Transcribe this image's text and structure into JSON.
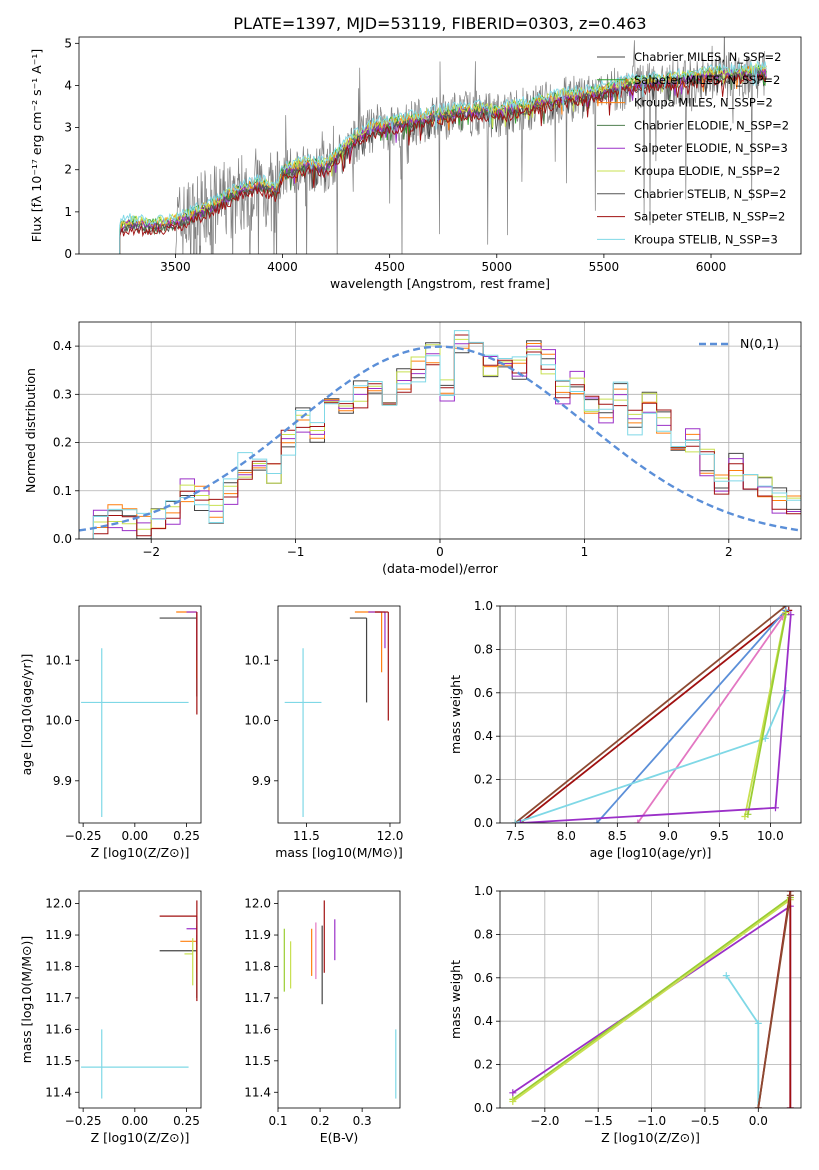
{
  "figure": {
    "title": "PLATE=1397, MJD=53119, FIBERID=0303, z=0.463"
  },
  "chart_data": [
    {
      "id": "spectrum",
      "type": "line",
      "xlabel": "wavelength [Angstrom, rest frame]",
      "ylabel": "Flux [fλ 10⁻¹⁷ erg cm⁻² s⁻¹ A⁻¹]",
      "xlim": [
        3050,
        6420
      ],
      "ylim": [
        0,
        5.15
      ],
      "xticks": [
        3500,
        4000,
        4500,
        5000,
        5500,
        6000
      ],
      "yticks": [
        0,
        1,
        2,
        3,
        4,
        5
      ],
      "data_color": "#808080",
      "model_points": {
        "x": [
          3240,
          3300,
          3400,
          3500,
          3600,
          3700,
          3800,
          3900,
          3970,
          4000,
          4100,
          4200,
          4300,
          4400,
          4500,
          4600,
          4700,
          4800,
          4900,
          5000,
          5100,
          5200,
          5300,
          5400,
          5500,
          5600,
          5700,
          5800,
          5900,
          6000,
          6100,
          6200
        ],
        "y": [
          0.6,
          0.65,
          0.6,
          0.7,
          0.9,
          1.15,
          1.45,
          1.6,
          1.4,
          1.9,
          2.05,
          2.0,
          2.5,
          2.9,
          3.0,
          3.1,
          3.2,
          3.3,
          3.35,
          3.3,
          3.4,
          3.5,
          3.65,
          3.7,
          3.8,
          3.95,
          4.0,
          4.05,
          4.1,
          4.2,
          4.2,
          4.25
        ]
      },
      "legend_position": "upper right",
      "series": [
        {
          "name": "Chabrier MILES, N_SSP=2",
          "color": "#444444"
        },
        {
          "name": "Salpeter MILES, N_SSP=2",
          "color": "#2ca02c"
        },
        {
          "name": "Kroupa MILES, N_SSP=2",
          "color": "#ff7f0e"
        },
        {
          "name": "Chabrier ELODIE, N_SSP=2",
          "color": "#4f7f4f"
        },
        {
          "name": "Salpeter ELODIE, N_SSP=3",
          "color": "#9b30c8"
        },
        {
          "name": "Kroupa ELODIE, N_SSP=2",
          "color": "#c8e050"
        },
        {
          "name": "Chabrier STELIB, N_SSP=2",
          "color": "#555555"
        },
        {
          "name": "Salpeter STELIB, N_SSP=2",
          "color": "#a01010"
        },
        {
          "name": "Kroupa STELIB, N_SSP=3",
          "color": "#7fd8e6"
        }
      ]
    },
    {
      "id": "residuals",
      "type": "line",
      "xlabel": "(data-model)/error",
      "ylabel": "Normed distribution",
      "xlim": [
        -2.5,
        2.5
      ],
      "ylim": [
        0,
        0.45
      ],
      "xticks": [
        -2,
        -1,
        0,
        1,
        2
      ],
      "yticks": [
        0.0,
        0.1,
        0.2,
        0.3,
        0.4
      ],
      "grid": true,
      "legend_position": "upper right",
      "gaussian": {
        "name": "N(0,1)",
        "color": "#5b8fd8",
        "mean": 0,
        "sigma": 1
      },
      "hist_bins": [
        -2.5,
        -2.4,
        -2.3,
        -2.2,
        -2.1,
        -2.0,
        -1.9,
        -1.8,
        -1.7,
        -1.6,
        -1.5,
        -1.4,
        -1.3,
        -1.2,
        -1.1,
        -1.0,
        -0.9,
        -0.8,
        -0.7,
        -0.6,
        -0.5,
        -0.4,
        -0.3,
        -0.2,
        -0.1,
        0.0,
        0.1,
        0.2,
        0.3,
        0.4,
        0.5,
        0.6,
        0.7,
        0.8,
        0.9,
        1.0,
        1.1,
        1.2,
        1.3,
        1.4,
        1.5,
        1.6,
        1.7,
        1.8,
        1.9,
        2.0,
        2.1,
        2.2,
        2.3,
        2.4
      ],
      "hist_values": [
        0.02,
        0.04,
        0.05,
        0.04,
        0.03,
        0.04,
        0.05,
        0.1,
        0.08,
        0.06,
        0.1,
        0.15,
        0.17,
        0.14,
        0.2,
        0.25,
        0.22,
        0.27,
        0.26,
        0.3,
        0.32,
        0.3,
        0.33,
        0.35,
        0.38,
        0.3,
        0.41,
        0.4,
        0.36,
        0.38,
        0.36,
        0.39,
        0.37,
        0.3,
        0.33,
        0.29,
        0.27,
        0.3,
        0.24,
        0.28,
        0.24,
        0.19,
        0.2,
        0.16,
        0.12,
        0.15,
        0.12,
        0.1,
        0.08,
        0.08
      ],
      "hist_colors": [
        "#444444",
        "#ff7f0e",
        "#9b30c8",
        "#c8e050",
        "#a01010",
        "#7fd8e6"
      ]
    },
    {
      "id": "age_vs_Z",
      "type": "scatter",
      "xlabel": "Z [log10(Z/Z⊙)]",
      "ylabel": "age  [log10(age/yr)]",
      "xlim": [
        -0.27,
        0.32
      ],
      "ylim": [
        9.83,
        10.19
      ],
      "xticks": [
        -0.25,
        0.0,
        0.25
      ],
      "yticks": [
        9.9,
        10.0,
        10.1
      ],
      "points": [
        {
          "x": -0.16,
          "y": 10.03,
          "xerr": [
            0.1,
            0.42
          ],
          "yerr": [
            0.19,
            0.09
          ],
          "color": "#7fd8e6"
        },
        {
          "x": 0.3,
          "y": 10.17,
          "xerr": [
            0.18,
            0.0
          ],
          "yerr": [
            0.13,
            0.0
          ],
          "color": "#444444"
        },
        {
          "x": 0.3,
          "y": 10.18,
          "xerr": [
            0.1,
            0.0
          ],
          "yerr": [
            0.11,
            0.0
          ],
          "color": "#ff7f0e"
        },
        {
          "x": 0.3,
          "y": 10.18,
          "xerr": [
            0.05,
            0.0
          ],
          "yerr": [
            0.08,
            0.0
          ],
          "color": "#9b30c8"
        },
        {
          "x": 0.3,
          "y": 10.18,
          "xerr": [
            0.0,
            0.0
          ],
          "yerr": [
            0.17,
            0.0
          ],
          "color": "#a01010"
        }
      ]
    },
    {
      "id": "age_vs_mass",
      "type": "scatter",
      "xlabel": "mass [log10(M/M⊙)]",
      "ylabel": "",
      "xlim": [
        11.33,
        12.06
      ],
      "ylim": [
        9.83,
        10.19
      ],
      "xticks": [
        11.5,
        12.0
      ],
      "yticks": [
        9.9,
        10.0,
        10.1
      ],
      "points": [
        {
          "x": 11.48,
          "y": 10.03,
          "xerr": [
            0.11,
            0.11
          ],
          "yerr": [
            0.19,
            0.09
          ],
          "color": "#7fd8e6"
        },
        {
          "x": 11.86,
          "y": 10.17,
          "xerr": [
            0.1,
            0.0
          ],
          "yerr": [
            0.14,
            0.0
          ],
          "color": "#444444"
        },
        {
          "x": 11.95,
          "y": 10.18,
          "xerr": [
            0.16,
            0.0
          ],
          "yerr": [
            0.1,
            0.0
          ],
          "color": "#ff7f0e"
        },
        {
          "x": 11.97,
          "y": 10.18,
          "xerr": [
            0.1,
            0.0
          ],
          "yerr": [
            0.06,
            0.0
          ],
          "color": "#9b30c8"
        },
        {
          "x": 11.99,
          "y": 10.18,
          "xerr": [
            0.08,
            0.0
          ],
          "yerr": [
            0.18,
            0.0
          ],
          "color": "#a01010"
        }
      ]
    },
    {
      "id": "mass_weight_vs_age",
      "type": "line",
      "xlabel": "age  [log10(age/yr)]",
      "ylabel": "mass weight",
      "xlim": [
        7.35,
        10.3
      ],
      "ylim": [
        0,
        1
      ],
      "xticks": [
        7.5,
        8.0,
        8.5,
        9.0,
        9.5,
        10.0
      ],
      "yticks": [
        0.0,
        0.2,
        0.4,
        0.6,
        0.8,
        1.0
      ],
      "grid": true,
      "series": [
        {
          "x": [
            7.5,
            10.15
          ],
          "y": [
            0.0,
            1.0
          ],
          "color": "#8c4a32"
        },
        {
          "x": [
            7.55,
            10.18
          ],
          "y": [
            0.0,
            0.98
          ],
          "color": "#a01010"
        },
        {
          "x": [
            8.3,
            10.15
          ],
          "y": [
            0.0,
            0.98
          ],
          "color": "#5b8fd8"
        },
        {
          "x": [
            8.7,
            10.12
          ],
          "y": [
            0.0,
            0.95
          ],
          "color": "#e377c2"
        },
        {
          "x": [
            7.5,
            9.95,
            10.15
          ],
          "y": [
            0.0,
            0.39,
            0.61
          ],
          "color": "#7fd8e6"
        },
        {
          "x": [
            9.75,
            10.15
          ],
          "y": [
            0.03,
            0.97
          ],
          "color": "#c8e050"
        },
        {
          "x": [
            9.78,
            10.15
          ],
          "y": [
            0.04,
            0.96
          ],
          "color": "#9acd32"
        },
        {
          "x": [
            7.55,
            10.05,
            10.2
          ],
          "y": [
            0.0,
            0.07,
            0.96
          ],
          "color": "#9b30c8"
        }
      ]
    },
    {
      "id": "mass_vs_Z",
      "type": "scatter",
      "xlabel": "Z [log10(Z/Z⊙)]",
      "ylabel": "mass [log10(M/M⊙)]",
      "xlim": [
        -0.27,
        0.32
      ],
      "ylim": [
        11.35,
        12.04
      ],
      "xticks": [
        -0.25,
        0.0,
        0.25
      ],
      "yticks": [
        11.4,
        11.5,
        11.6,
        11.7,
        11.8,
        11.9,
        12.0
      ],
      "points": [
        {
          "x": -0.16,
          "y": 11.48,
          "xerr": [
            0.1,
            0.42
          ],
          "yerr": [
            0.1,
            0.12
          ],
          "color": "#7fd8e6"
        },
        {
          "x": 0.3,
          "y": 11.85,
          "xerr": [
            0.18,
            0.0
          ],
          "yerr": [
            0.15,
            0.05
          ],
          "color": "#444444"
        },
        {
          "x": 0.3,
          "y": 11.88,
          "xerr": [
            0.08,
            0.0
          ],
          "yerr": [
            0.1,
            0.05
          ],
          "color": "#ff7f0e"
        },
        {
          "x": 0.3,
          "y": 11.92,
          "xerr": [
            0.05,
            0.0
          ],
          "yerr": [
            0.05,
            0.04
          ],
          "color": "#9b30c8"
        },
        {
          "x": 0.3,
          "y": 11.96,
          "xerr": [
            0.18,
            0.0
          ],
          "yerr": [
            0.27,
            0.05
          ],
          "color": "#a01010"
        },
        {
          "x": 0.28,
          "y": 11.84,
          "xerr": [
            0.04,
            0.0
          ],
          "yerr": [
            0.1,
            0.05
          ],
          "color": "#c8e050"
        }
      ]
    },
    {
      "id": "mass_vs_EBV",
      "type": "scatter",
      "xlabel": "E(B-V)",
      "ylabel": "",
      "xlim": [
        0.1,
        0.39
      ],
      "ylim": [
        11.35,
        12.04
      ],
      "xticks": [
        0.1,
        0.2,
        0.3
      ],
      "yticks": [
        11.4,
        11.5,
        11.6,
        11.7,
        11.8,
        11.9,
        12.0
      ],
      "points": [
        {
          "x": 0.115,
          "y": 11.82,
          "yerr": [
            0.1,
            0.1
          ],
          "color": "#9acd32"
        },
        {
          "x": 0.13,
          "y": 11.81,
          "yerr": [
            0.08,
            0.07
          ],
          "color": "#c8e050"
        },
        {
          "x": 0.18,
          "y": 11.83,
          "yerr": [
            0.06,
            0.09
          ],
          "color": "#ff7f0e"
        },
        {
          "x": 0.19,
          "y": 11.84,
          "yerr": [
            0.08,
            0.1
          ],
          "color": "#e377c2"
        },
        {
          "x": 0.205,
          "y": 11.8,
          "yerr": [
            0.12,
            0.13
          ],
          "color": "#444444"
        },
        {
          "x": 0.21,
          "y": 11.86,
          "yerr": [
            0.08,
            0.15
          ],
          "color": "#a01010"
        },
        {
          "x": 0.235,
          "y": 11.88,
          "yerr": [
            0.06,
            0.07
          ],
          "color": "#9b30c8"
        },
        {
          "x": 0.38,
          "y": 11.48,
          "yerr": [
            0.1,
            0.12
          ],
          "color": "#7fd8e6"
        }
      ]
    },
    {
      "id": "mass_weight_vs_Z",
      "type": "line",
      "xlabel": "Z [log10(Z/Z⊙)]",
      "ylabel": "mass weight",
      "xlim": [
        -2.42,
        0.4
      ],
      "ylim": [
        0,
        1
      ],
      "xticks": [
        -2.0,
        -1.5,
        -1.0,
        -0.5,
        0.0
      ],
      "yticks": [
        0.0,
        0.2,
        0.4,
        0.6,
        0.8,
        1.0
      ],
      "grid": true,
      "series": [
        {
          "x": [
            -2.3,
            0.3,
            0.3
          ],
          "y": [
            0.07,
            0.93,
            0.0
          ],
          "color": "#9b30c8"
        },
        {
          "x": [
            -2.3,
            0.3
          ],
          "y": [
            0.04,
            0.97
          ],
          "color": "#9acd32"
        },
        {
          "x": [
            -2.3,
            0.3
          ],
          "y": [
            0.03,
            0.96
          ],
          "color": "#c8e050"
        },
        {
          "x": [
            -0.3,
            0.0,
            0.0
          ],
          "y": [
            0.61,
            0.39,
            0.0
          ],
          "color": "#7fd8e6"
        },
        {
          "x": [
            0.0,
            0.3,
            0.3
          ],
          "y": [
            0.0,
            1.0,
            0.0
          ],
          "color": "#a01010"
        },
        {
          "x": [
            0.0,
            0.3
          ],
          "y": [
            0.0,
            0.98
          ],
          "color": "#8c4a32"
        }
      ]
    }
  ]
}
